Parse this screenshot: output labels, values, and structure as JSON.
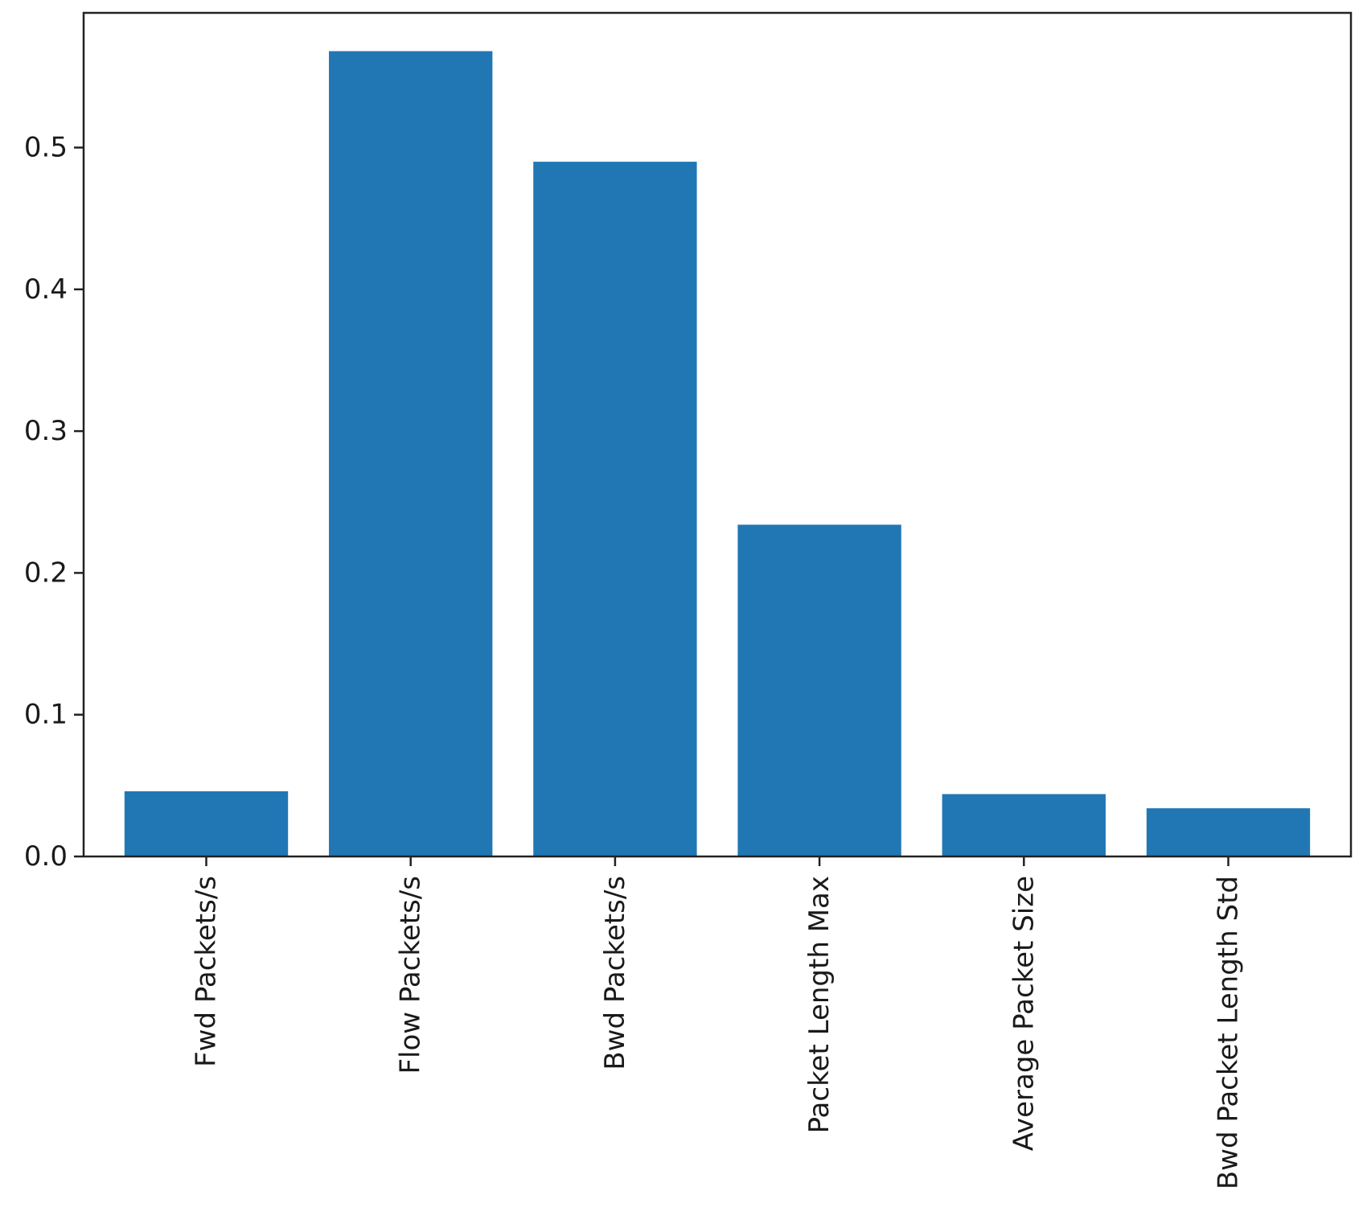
{
  "chart_data": {
    "type": "bar",
    "title": "",
    "xlabel": "",
    "ylabel": "",
    "categories": [
      "Fwd Packets/s",
      "Flow Packets/s",
      "Bwd Packets/s",
      "Packet Length Max",
      "Average Packet Size",
      "Bwd Packet Length Std"
    ],
    "values": [
      0.046,
      0.568,
      0.49,
      0.234,
      0.044,
      0.034
    ],
    "ylim": [
      0,
      0.595
    ],
    "yticks": [
      0.0,
      0.1,
      0.2,
      0.3,
      0.4,
      0.5
    ],
    "ytick_labels": [
      "0.0",
      "0.1",
      "0.2",
      "0.3",
      "0.4",
      "0.5"
    ],
    "bar_color": "#2177b4",
    "grid": false,
    "legend": "none"
  }
}
